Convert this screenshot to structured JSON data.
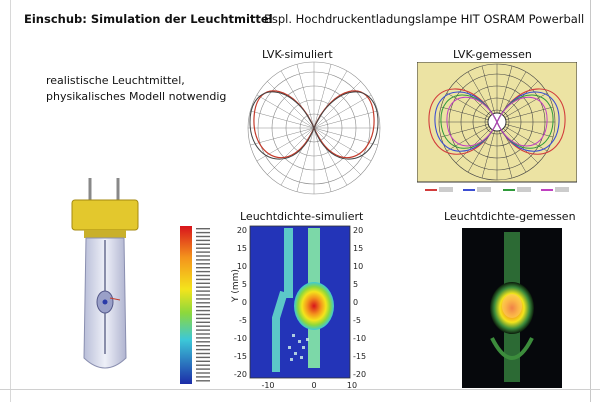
{
  "slide": {
    "title": "Einschub: Simulation der Leuchtmittel",
    "subtitle": "Bspl. Hochdruckentladungslampe HIT  OSRAM Powerball",
    "description_line1": "realistische Leuchtmittel,",
    "description_line2": "physikalisches Modell notwendig"
  },
  "panels": {
    "lvk_sim_title": "LVK-simuliert",
    "lvk_meas_title": "LVK-gemessen",
    "ld_sim_title": "Leuchtdichte-simuliert",
    "ld_meas_title": "Leuchtdichte-gemessen"
  },
  "ld_sim_axes": {
    "ylabel": "Y  (mm)",
    "y_ticks": [
      "20",
      "15",
      "10",
      "5",
      "0",
      "-5",
      "-10",
      "-15",
      "-20"
    ],
    "x_ticks": [
      "-10",
      "0",
      "10"
    ]
  },
  "colors": {
    "sim_curve_a": "#c43a2a",
    "sim_curve_b": "#444444",
    "meas_red": "#d23c3c",
    "meas_blue": "#3c4ed2",
    "meas_green": "#2f9a3a",
    "meas_magenta": "#c040c0",
    "polar_bg_meas": "#ece3a3",
    "lamp_base": "#e3c82d"
  },
  "icons": [
    "lamp-illustration",
    "color-scale-bar"
  ]
}
